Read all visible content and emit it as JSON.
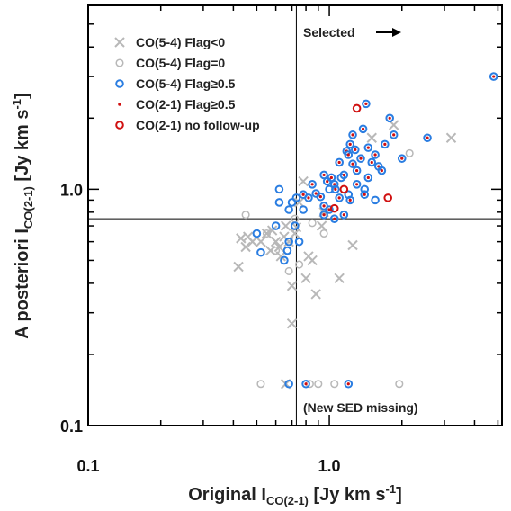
{
  "chart_data": {
    "type": "scatter",
    "xlabel": "Original I",
    "xlabel_sub": "CO(2-1)",
    "xlabel_units": " [Jy km s",
    "xlabel_exp": "-1",
    "xlabel_close": "]",
    "ylabel": "A posteriori I",
    "ylabel_sub": "CO(2-1)",
    "ylabel_units": " [Jy km s",
    "ylabel_exp": "-1",
    "ylabel_close": "]",
    "xscale": "log",
    "yscale": "log",
    "xlim": [
      0.1,
      5.2
    ],
    "ylim": [
      0.1,
      6.0
    ],
    "xticks": [
      {
        "v": 0.1,
        "label": "0.1"
      },
      {
        "v": 1.0,
        "label": "1.0"
      }
    ],
    "yticks": [
      {
        "v": 0.1,
        "label": "0.1"
      },
      {
        "v": 1.0,
        "label": "1.0"
      }
    ],
    "vline": 0.73,
    "hline": 0.75,
    "legend_position": "top-left",
    "annotations": {
      "selected": "Selected",
      "new_sed": "(New SED missing)"
    },
    "colors": {
      "gray": "#b8b8b8",
      "blue": "#2a7de1",
      "red": "#d01010",
      "line": "#000000"
    },
    "series": [
      {
        "name": "CO(5-4) Flag<0",
        "marker": "x",
        "points": [
          [
            0.42,
            0.47
          ],
          [
            0.43,
            0.62
          ],
          [
            0.45,
            0.57
          ],
          [
            0.46,
            0.63
          ],
          [
            0.48,
            0.6
          ],
          [
            0.52,
            0.6
          ],
          [
            0.55,
            0.65
          ],
          [
            0.57,
            0.55
          ],
          [
            0.58,
            0.67
          ],
          [
            0.6,
            0.6
          ],
          [
            0.62,
            0.57
          ],
          [
            0.63,
            0.52
          ],
          [
            0.65,
            0.63
          ],
          [
            0.66,
            0.7
          ],
          [
            0.68,
            0.6
          ],
          [
            0.7,
            0.39
          ],
          [
            0.7,
            0.27
          ],
          [
            0.72,
            0.65
          ],
          [
            0.73,
            0.69
          ],
          [
            0.75,
            0.88
          ],
          [
            0.78,
            1.08
          ],
          [
            0.8,
            0.42
          ],
          [
            0.82,
            0.52
          ],
          [
            0.85,
            0.5
          ],
          [
            0.88,
            0.36
          ],
          [
            0.93,
            0.7
          ],
          [
            0.95,
            0.8
          ],
          [
            1.1,
            0.42
          ],
          [
            1.25,
            0.58
          ],
          [
            1.5,
            1.65
          ],
          [
            1.85,
            1.87
          ],
          [
            3.2,
            1.65
          ],
          [
            0.66,
            0.15
          ]
        ]
      },
      {
        "name": "CO(5-4) Flag=0",
        "marker": "open-circle",
        "points": [
          [
            0.52,
            0.15
          ],
          [
            0.83,
            0.15
          ],
          [
            0.9,
            0.15
          ],
          [
            1.05,
            0.15
          ],
          [
            1.95,
            0.15
          ],
          [
            0.55,
            0.65
          ],
          [
            0.6,
            0.55
          ],
          [
            0.68,
            0.45
          ],
          [
            0.75,
            0.48
          ],
          [
            0.85,
            0.72
          ],
          [
            0.95,
            0.65
          ],
          [
            0.45,
            0.78
          ],
          [
            0.72,
            0.75
          ],
          [
            2.15,
            1.42
          ]
        ]
      },
      {
        "name": "CO(5-4) Flag≥0.5",
        "marker": "blue-circle",
        "points": [
          [
            0.5,
            0.65
          ],
          [
            0.52,
            0.54
          ],
          [
            0.6,
            0.7
          ],
          [
            0.62,
            0.88
          ],
          [
            0.65,
            0.5
          ],
          [
            0.67,
            0.55
          ],
          [
            0.68,
            0.6
          ],
          [
            0.68,
            0.82
          ],
          [
            0.7,
            0.88
          ],
          [
            0.72,
            0.7
          ],
          [
            0.73,
            0.92
          ],
          [
            0.75,
            0.6
          ],
          [
            0.78,
            0.82
          ],
          [
            0.62,
            1.0
          ],
          [
            0.68,
            0.15
          ],
          [
            1.0,
            1.0
          ],
          [
            1.12,
            1.12
          ],
          [
            1.2,
            0.95
          ],
          [
            1.4,
            1.0
          ],
          [
            1.55,
            0.9
          ]
        ]
      },
      {
        "name": "CO(2-1) Flag≥0.5",
        "marker": "blue-circle-red-dot",
        "points": [
          [
            0.78,
            0.95
          ],
          [
            0.82,
            0.92
          ],
          [
            0.85,
            1.05
          ],
          [
            0.88,
            0.96
          ],
          [
            0.92,
            0.93
          ],
          [
            0.95,
            0.85
          ],
          [
            0.98,
            1.08
          ],
          [
            1.02,
            1.12
          ],
          [
            1.05,
            1.05
          ],
          [
            1.1,
            1.3
          ],
          [
            1.15,
            1.15
          ],
          [
            1.18,
            1.45
          ],
          [
            1.2,
            1.4
          ],
          [
            1.22,
            1.55
          ],
          [
            1.25,
            1.7
          ],
          [
            1.28,
            1.47
          ],
          [
            1.3,
            1.2
          ],
          [
            1.35,
            1.35
          ],
          [
            1.38,
            1.8
          ],
          [
            1.42,
            2.3
          ],
          [
            1.45,
            1.5
          ],
          [
            1.5,
            1.3
          ],
          [
            1.55,
            1.4
          ],
          [
            1.6,
            1.25
          ],
          [
            1.65,
            1.2
          ],
          [
            1.7,
            1.55
          ],
          [
            1.78,
            2.0
          ],
          [
            1.85,
            1.7
          ],
          [
            2.0,
            1.35
          ],
          [
            2.55,
            1.65
          ],
          [
            4.8,
            3.0
          ],
          [
            1.1,
            0.92
          ],
          [
            1.0,
            0.82
          ],
          [
            1.22,
            0.9
          ],
          [
            1.3,
            1.05
          ],
          [
            0.95,
            0.78
          ],
          [
            1.05,
            0.75
          ],
          [
            1.15,
            0.78
          ],
          [
            1.4,
            0.95
          ],
          [
            0.8,
            0.15
          ],
          [
            1.2,
            0.15
          ],
          [
            1.45,
            1.12
          ],
          [
            0.95,
            1.15
          ],
          [
            1.06,
            1.0
          ],
          [
            1.25,
            1.28
          ]
        ]
      },
      {
        "name": "CO(2-1) no follow-up",
        "marker": "red-circle",
        "points": [
          [
            1.3,
            2.2
          ],
          [
            1.75,
            0.92
          ],
          [
            1.05,
            0.83
          ],
          [
            1.15,
            1.0
          ]
        ]
      }
    ]
  }
}
